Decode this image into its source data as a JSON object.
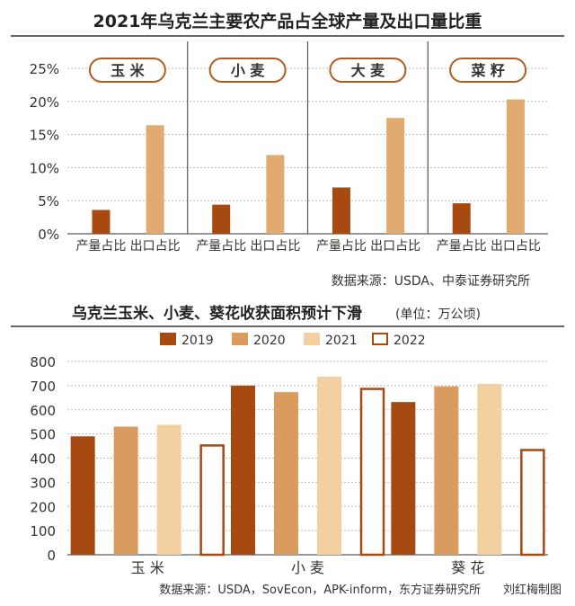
{
  "colors": {
    "c2019": "#a64a12",
    "c2020": "#d99b5e",
    "c2021": "#f2d0a0",
    "c2022_stroke": "#a64a12",
    "grid": "#bbbbbb",
    "axis": "#555555",
    "text": "#333333",
    "pill_stroke": "#b35b1e"
  },
  "chart_data": [
    {
      "type": "bar",
      "title": "2021年乌克兰主要农产品占全球产量及出口量比重",
      "ylim": [
        0,
        25
      ],
      "yticks": [
        "0%",
        "5%",
        "10%",
        "15%",
        "20%",
        "25%"
      ],
      "groups": [
        {
          "name": "玉 米",
          "categories": [
            "产量占比",
            "出口占比"
          ],
          "values": [
            3.6,
            16.4
          ]
        },
        {
          "name": "小 麦",
          "categories": [
            "产量占比",
            "出口占比"
          ],
          "values": [
            4.4,
            11.9
          ]
        },
        {
          "name": "大 麦",
          "categories": [
            "产量占比",
            "出口占比"
          ],
          "values": [
            7.0,
            17.5
          ]
        },
        {
          "name": "菜 籽",
          "categories": [
            "产量占比",
            "出口占比"
          ],
          "values": [
            4.6,
            20.3
          ]
        }
      ],
      "source": "数据来源：USDA、中泰证券研究所"
    },
    {
      "type": "bar",
      "title": "乌克兰玉米、小麦、葵花收获面积预计下滑",
      "unit": "(单位：万公顷)",
      "ylim": [
        0,
        800
      ],
      "yticks": [
        "0",
        "100",
        "200",
        "300",
        "400",
        "500",
        "600",
        "700",
        "800"
      ],
      "categories": [
        "玉 米",
        "小 麦",
        "葵 花"
      ],
      "series": [
        {
          "name": "2019",
          "values": [
            490,
            700,
            632
          ]
        },
        {
          "name": "2020",
          "values": [
            530,
            673,
            697
          ]
        },
        {
          "name": "2021",
          "values": [
            538,
            737,
            707
          ]
        },
        {
          "name": "2022",
          "values": [
            456,
            690,
            437
          ]
        }
      ],
      "source": "数据来源：USDA，SovEcon，APK-inform，东方证券研究所",
      "credit": "刘红梅制图"
    }
  ]
}
